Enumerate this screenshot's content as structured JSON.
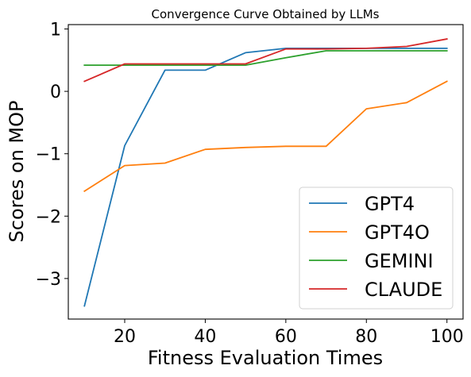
{
  "chart_data": {
    "type": "line",
    "title": "Convergence Curve Obtained by LLMs",
    "xlabel": "Fitness Evaluation Times",
    "ylabel": "Scores on MOP",
    "xlim": [
      6,
      104
    ],
    "ylim": [
      -3.65,
      1.07
    ],
    "xticks": [
      20,
      40,
      60,
      80,
      100
    ],
    "yticks": [
      1,
      0,
      -1,
      -2,
      -3
    ],
    "xtick_labels": [
      "20",
      "40",
      "60",
      "80",
      "100"
    ],
    "ytick_labels": [
      "1",
      "0",
      "−1",
      "−2",
      "−3"
    ],
    "legend_position": "lower-right",
    "grid": false,
    "x": [
      10,
      20,
      30,
      40,
      50,
      60,
      70,
      80,
      90,
      100
    ],
    "series": [
      {
        "name": "GPT4",
        "color": "#1f77b4",
        "values": [
          -3.44,
          -0.87,
          0.34,
          0.34,
          0.62,
          0.69,
          0.69,
          0.69,
          0.69,
          0.69
        ]
      },
      {
        "name": "GPT4O",
        "color": "#ff7f0e",
        "values": [
          -1.6,
          -1.19,
          -1.15,
          -0.93,
          -0.9,
          -0.88,
          -0.88,
          -0.28,
          -0.18,
          0.16
        ]
      },
      {
        "name": "GEMINI",
        "color": "#2ca02c",
        "values": [
          0.42,
          0.42,
          0.42,
          0.42,
          0.42,
          0.54,
          0.65,
          0.65,
          0.65,
          0.65
        ]
      },
      {
        "name": "CLAUDE",
        "color": "#d62728",
        "values": [
          0.16,
          0.44,
          0.44,
          0.44,
          0.44,
          0.68,
          0.68,
          0.69,
          0.72,
          0.84
        ]
      }
    ]
  }
}
